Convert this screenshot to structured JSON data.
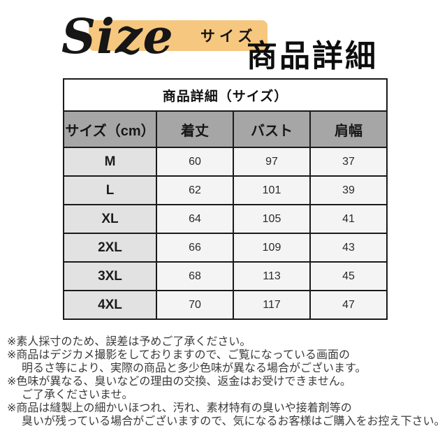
{
  "header": {
    "decorative_title": "Size",
    "subtitle": "サイズ",
    "title": "商品詳細",
    "highlight_color": "#f6c77e"
  },
  "size_table": {
    "caption": "商品詳細（サイズ）",
    "columns": [
      "サイズ（cm）",
      "着丈",
      "バスト",
      "肩幅"
    ],
    "rows": [
      [
        "M",
        "60",
        "97",
        "37"
      ],
      [
        "L",
        "62",
        "101",
        "39"
      ],
      [
        "XL",
        "64",
        "105",
        "41"
      ],
      [
        "2XL",
        "66",
        "109",
        "43"
      ],
      [
        "3XL",
        "68",
        "113",
        "45"
      ],
      [
        "4XL",
        "70",
        "117",
        "47"
      ]
    ],
    "header_bg": "#a6a6a6",
    "label_column_bg": "#e2e2e2",
    "cell_bg": "#f4f4f4",
    "border_color": "#1a1a1a"
  },
  "notes": {
    "lines": [
      "※素人採寸のため、誤差は予めご了承ください。",
      "※商品はデジカメ撮影をしておりますので、ご覧になっている画面の",
      "明るさ等により、実際の商品と多少色味が異なる場合がございます。",
      "※色味が異なる、臭いなどの理由の交換、返金はお受けできません。",
      "ご了承くださいませ。",
      "※商品は縫製上の細かいほつれ、汚れ、素材特有の臭いや接着剤等の",
      "臭いが残っている場合がございますので、気になるお客様はご購入をお控え下さい。"
    ]
  }
}
